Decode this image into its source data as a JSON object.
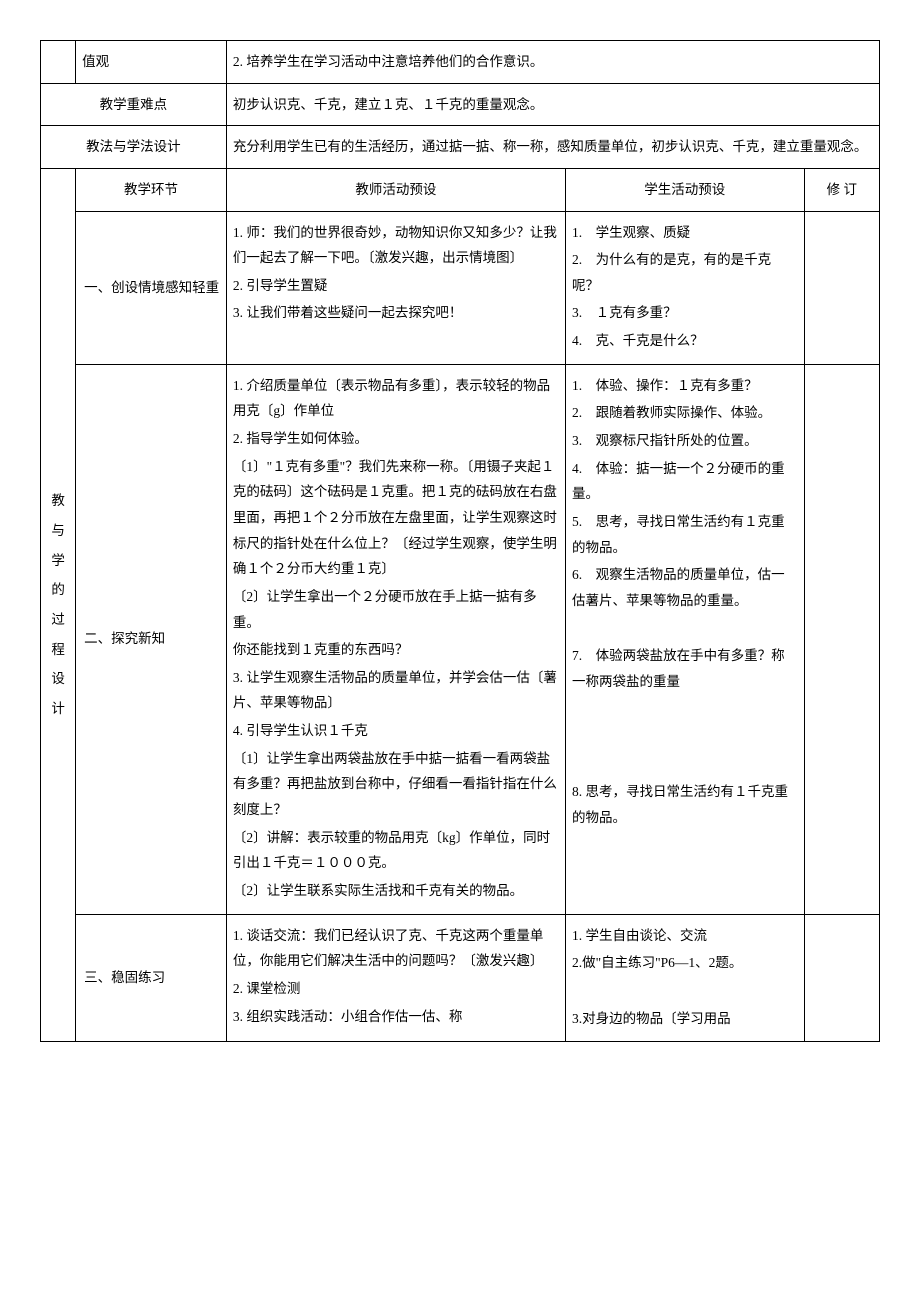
{
  "row_values": {
    "label": "值观",
    "content": "2. 培养学生在学习活动中注意培养他们的合作意识。"
  },
  "row_difficulty": {
    "label": "教学重难点",
    "content": "初步认识克、千克，建立１克、１千克的重量观念。"
  },
  "row_method": {
    "label": "教法与学法设计",
    "content": "充分利用学生已有的生活经历，通过掂一掂、称一称，感知质量单位，初步认识克、千克，建立重量观念。"
  },
  "process_header": {
    "c1": "教学环节",
    "c2": "教师活动预设",
    "c3": "学生活动预设",
    "c4": "修 订"
  },
  "vertical_label": "教与学的过程设计",
  "section1": {
    "title": "一、创设情境感知轻重",
    "teacher": [
      "1. 师：我们的世界很奇妙，动物知识你又知多少？让我们一起去了解一下吧。〔激发兴趣，出示情境图〕",
      "2. 引导学生置疑",
      "3. 让我们带着这些疑问一起去探究吧！"
    ],
    "student": [
      "1.　学生观察、质疑",
      "2.　为什么有的是克，有的是千克呢？",
      "3.　１克有多重？",
      "4.　克、千克是什么？"
    ]
  },
  "section2": {
    "title": "二、探究新知",
    "teacher": [
      "1. 介绍质量单位〔表示物品有多重〕，表示较轻的物品用克〔g〕作单位",
      "2. 指导学生如何体验。",
      "〔1〕\"１克有多重\"？我们先来称一称。〔用镊子夹起１克的砝码〕这个砝码是１克重。把１克的砝码放在右盘里面，再把１个２分币放在左盘里面，让学生观察这时标尺的指针处在什么位上？〔经过学生观察，使学生明确１个２分币大约重１克〕",
      "〔2〕让学生拿出一个２分硬币放在手上掂一掂有多重。",
      "你还能找到１克重的东西吗？",
      "3. 让学生观察生活物品的质量单位，并学会估一估〔薯片、苹果等物品〕",
      "4. 引导学生认识１千克",
      "〔1〕让学生拿出两袋盐放在手中掂一掂看一看两袋盐有多重？再把盐放到台称中，仔细看一看指针指在什么刻度上？",
      "〔2〕讲解：表示较重的物品用克〔kg〕作单位，同时引出１千克＝１０００克。",
      "〔2〕让学生联系实际生活找和千克有关的物品。"
    ],
    "student": [
      "1.　体验、操作：１克有多重？",
      "2.　跟随着教师实际操作、体验。",
      "3.　观察标尺指针所处的位置。",
      "4.　体验：掂一掂一个２分硬币的重量。",
      "5.　思考，寻找日常生活约有１克重的物品。",
      "6.　观察生活物品的质量单位，估一估薯片、苹果等物品的重量。",
      "",
      "7.　体验两袋盐放在手中有多重？称一称两袋盐的重量",
      "",
      "",
      "",
      "8. 思考，寻找日常生活约有１千克重的物品。"
    ]
  },
  "section3": {
    "title": "三、稳固练习",
    "teacher": [
      "1. 谈话交流：我们已经认识了克、千克这两个重量单位，你能用它们解决生活中的问题吗？〔激发兴趣〕",
      "2. 课堂检测",
      "3. 组织实践活动：小组合作估一估、称"
    ],
    "student": [
      "1. 学生自由谈论、交流",
      "2.做\"自主练习\"P6—1、2题。",
      "",
      "3.对身边的物品〔学习用品"
    ]
  }
}
